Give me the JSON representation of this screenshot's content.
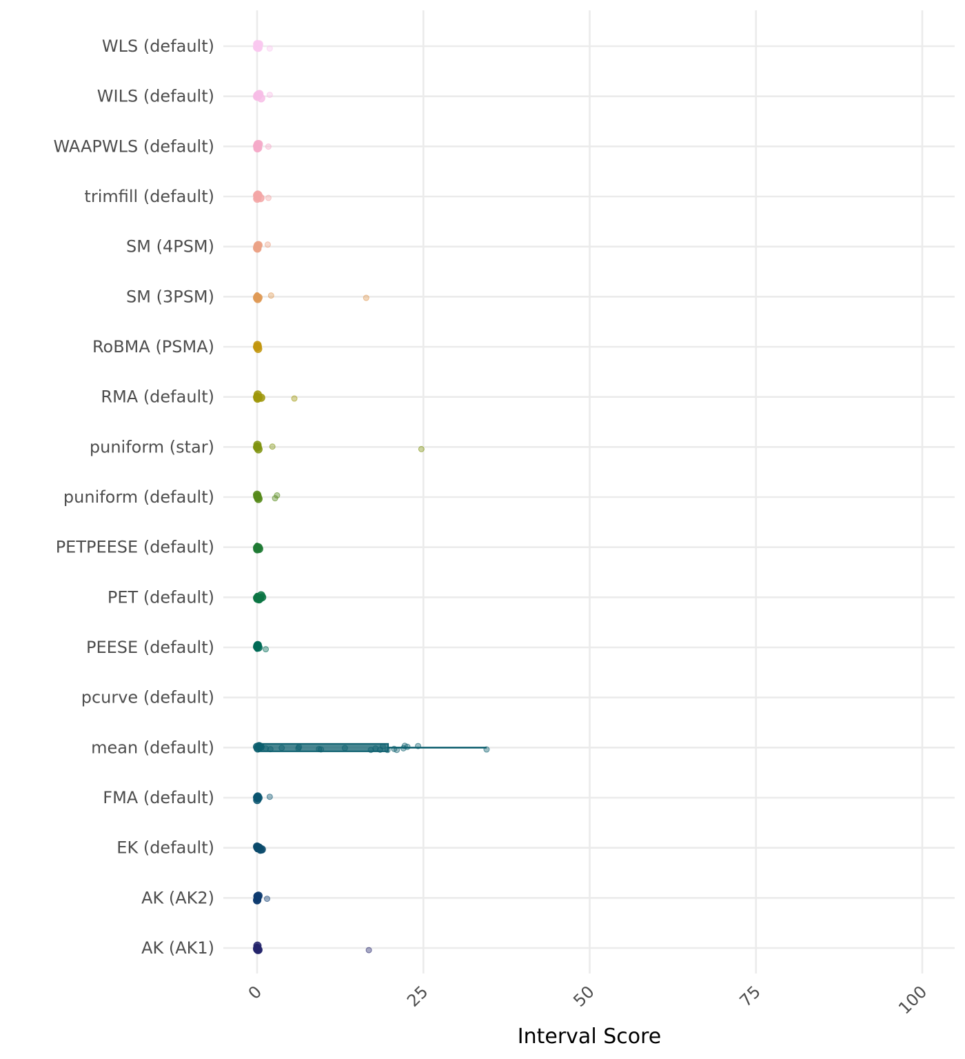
{
  "chart_data": {
    "type": "boxplot-jitter",
    "title": "",
    "xlabel": "Interval Score",
    "ylabel": "",
    "xlim": [
      -5,
      105
    ],
    "x_ticks": [
      "0",
      "25",
      "50",
      "75",
      "100"
    ],
    "x_tick_values": [
      0,
      25,
      50,
      75,
      100
    ],
    "grid": true,
    "legend": "none",
    "categories": [
      "WLS (default)",
      "WILS (default)",
      "WAAPWLS (default)",
      "trimfill (default)",
      "SM (4PSM)",
      "SM (3PSM)",
      "RoBMA (PSMA)",
      "RMA (default)",
      "puniform (star)",
      "puniform (default)",
      "PETPEESE (default)",
      "PET (default)",
      "PEESE (default)",
      "pcurve (default)",
      "mean (default)",
      "FMA (default)",
      "EK (default)",
      "AK (AK2)",
      "AK (AK1)"
    ],
    "series": [
      {
        "category": "WLS (default)",
        "color": "#f9c8f0",
        "q1": 0,
        "median": 0.05,
        "q3": 0.15,
        "whisker_high": 0.4,
        "points": [
          0,
          0.02,
          0.05,
          0.1,
          0.15,
          0.2,
          0.3,
          1.9
        ]
      },
      {
        "category": "WILS (default)",
        "color": "#f7bde6",
        "q1": 0,
        "median": 0.05,
        "q3": 0.15,
        "whisker_high": 0.5,
        "points": [
          0,
          0.03,
          0.06,
          0.12,
          0.2,
          0.35,
          0.6,
          1.9
        ]
      },
      {
        "category": "WAAPWLS (default)",
        "color": "#f5aac9",
        "q1": 0,
        "median": 0.05,
        "q3": 0.15,
        "whisker_high": 0.4,
        "points": [
          0,
          0.02,
          0.05,
          0.1,
          0.15,
          0.25,
          1.7
        ]
      },
      {
        "category": "trimfill (default)",
        "color": "#f3a6a6",
        "q1": 0,
        "median": 0.05,
        "q3": 0.15,
        "whisker_high": 0.4,
        "points": [
          0,
          0.02,
          0.06,
          0.1,
          0.18,
          0.5,
          1.7
        ]
      },
      {
        "category": "SM (4PSM)",
        "color": "#eba286",
        "q1": 0,
        "median": 0.05,
        "q3": 0.15,
        "whisker_high": 0.4,
        "points": [
          0,
          0.03,
          0.05,
          0.1,
          0.2,
          1.6
        ]
      },
      {
        "category": "SM (3PSM)",
        "color": "#df9a56",
        "q1": 0,
        "median": 0.05,
        "q3": 0.15,
        "whisker_high": 0.4,
        "points": [
          0,
          0.02,
          0.05,
          0.1,
          0.2,
          2.1,
          16.4
        ]
      },
      {
        "category": "RoBMA (PSMA)",
        "color": "#c2960e",
        "q1": 0,
        "median": 0.05,
        "q3": 0.15,
        "whisker_high": 0.3,
        "points": [
          0,
          0.02,
          0.05,
          0.1,
          0.15
        ]
      },
      {
        "category": "RMA (default)",
        "color": "#9e970a",
        "q1": 0,
        "median": 0.05,
        "q3": 0.15,
        "whisker_high": 0.5,
        "points": [
          0,
          0.03,
          0.06,
          0.1,
          0.2,
          0.6,
          5.6
        ]
      },
      {
        "category": "puniform (star)",
        "color": "#7f9310",
        "q1": 0,
        "median": 0.05,
        "q3": 0.15,
        "whisker_high": 0.4,
        "points": [
          0,
          0.02,
          0.05,
          0.1,
          0.2,
          2.3,
          24.7
        ]
      },
      {
        "category": "puniform (default)",
        "color": "#568a1b",
        "q1": 0,
        "median": 0.05,
        "q3": 0.2,
        "whisker_high": 0.5,
        "points": [
          0,
          0.03,
          0.06,
          0.12,
          0.2,
          2.7,
          3.0
        ]
      },
      {
        "category": "PETPEESE (default)",
        "color": "#1f7a34",
        "q1": 0,
        "median": 0.05,
        "q3": 0.2,
        "whisker_high": 0.4,
        "points": [
          0,
          0.02,
          0.06,
          0.12,
          0.2,
          0.3
        ]
      },
      {
        "category": "PET (default)",
        "color": "#0c7544",
        "q1": 0,
        "median": 0.1,
        "q3": 0.3,
        "whisker_high": 0.7,
        "points": [
          0,
          0.05,
          0.1,
          0.2,
          0.3,
          0.45,
          0.6,
          0.75
        ]
      },
      {
        "category": "PEESE (default)",
        "color": "#006a56",
        "q1": 0,
        "median": 0.05,
        "q3": 0.15,
        "whisker_high": 0.4,
        "points": [
          0,
          0.03,
          0.05,
          0.1,
          0.2,
          1.3
        ]
      },
      {
        "category": "pcurve (default)",
        "color": "#005f5f",
        "q1": null,
        "median": null,
        "q3": null,
        "whisker_high": null,
        "points": []
      },
      {
        "category": "mean (default)",
        "color": "#0c5f6e",
        "q1": 0.2,
        "median": 0.5,
        "q3": 19.7,
        "whisker_high": 34.5,
        "points": [
          0,
          0.1,
          0.3,
          0.5,
          1.3,
          2.0,
          3.7,
          6.2,
          6.3,
          9.3,
          9.6,
          13.2,
          17.1,
          17.8,
          18.5,
          18.9,
          19.6,
          20.6,
          21.0,
          22.0,
          22.2,
          22.6,
          24.2,
          34.5
        ]
      },
      {
        "category": "FMA (default)",
        "color": "#0a5570",
        "q1": 0,
        "median": 0.05,
        "q3": 0.15,
        "whisker_high": 0.4,
        "points": [
          0,
          0.02,
          0.05,
          0.1,
          0.2,
          1.9
        ]
      },
      {
        "category": "EK (default)",
        "color": "#0b4a6b",
        "q1": 0,
        "median": 0.05,
        "q3": 0.25,
        "whisker_high": 0.7,
        "points": [
          0,
          0.05,
          0.1,
          0.2,
          0.3,
          0.5,
          0.7
        ]
      },
      {
        "category": "AK (AK2)",
        "color": "#0d3a6e",
        "q1": 0,
        "median": 0.05,
        "q3": 0.15,
        "whisker_high": 0.4,
        "points": [
          0,
          0.02,
          0.05,
          0.1,
          0.2,
          1.5
        ]
      },
      {
        "category": "AK (AK1)",
        "color": "#24256b",
        "q1": 0,
        "median": 0.05,
        "q3": 0.15,
        "whisker_high": 0.4,
        "points": [
          0,
          0.02,
          0.05,
          0.1,
          0.2,
          16.8
        ]
      }
    ]
  }
}
